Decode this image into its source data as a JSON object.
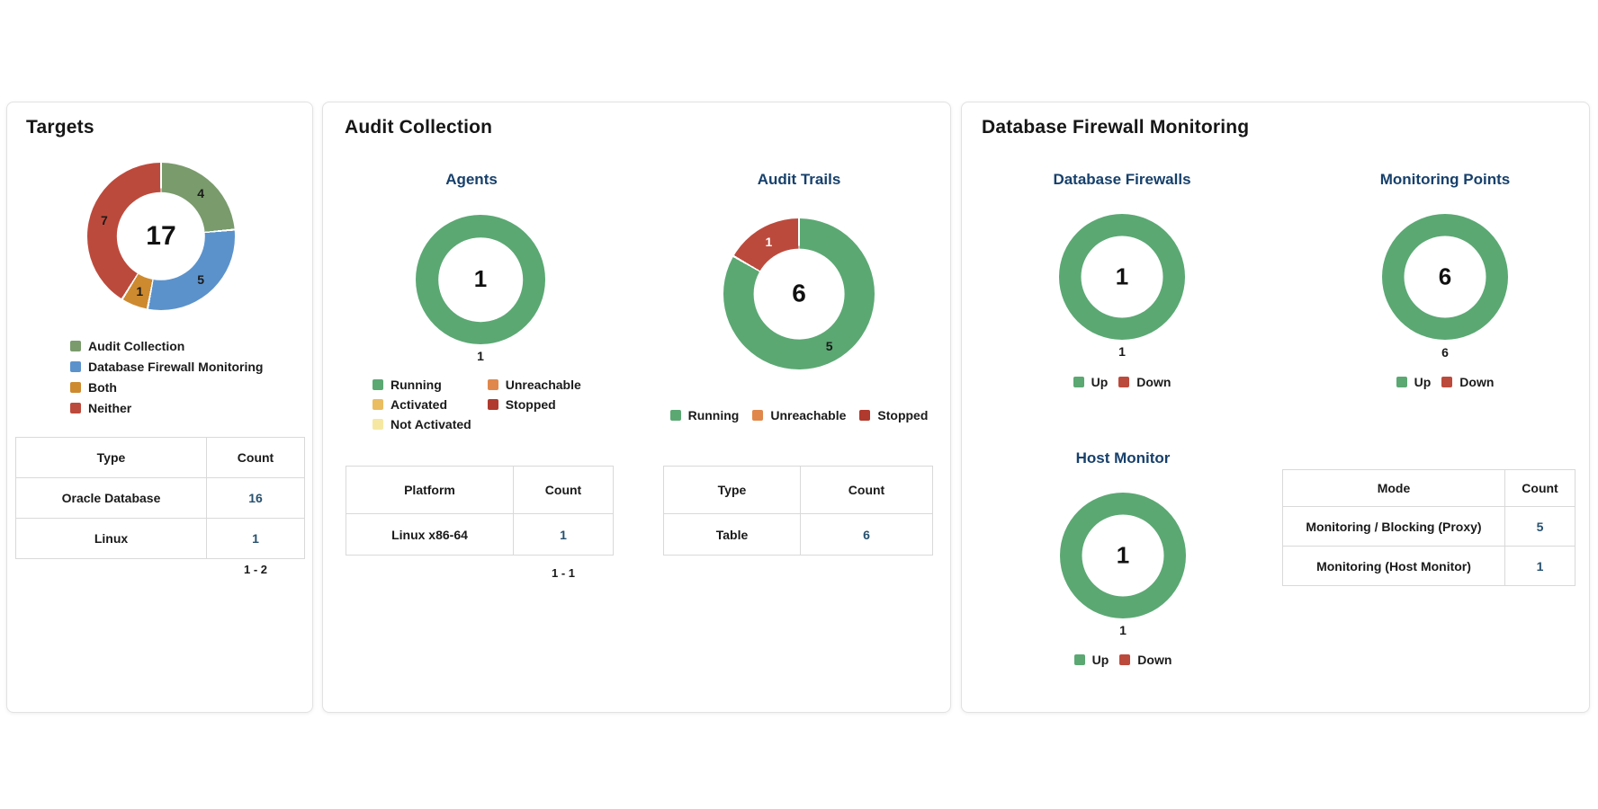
{
  "targets": {
    "title": "Targets",
    "legend": [
      {
        "label": "Audit Collection",
        "color": "#7A9B6C"
      },
      {
        "label": "Database Firewall Monitoring",
        "color": "#5B92CB"
      },
      {
        "label": "Both",
        "color": "#CE8A2F"
      },
      {
        "label": "Neither",
        "color": "#BC4A3C"
      }
    ],
    "table": {
      "headers": [
        "Type",
        "Count"
      ],
      "rows": [
        [
          "Oracle Database",
          "16"
        ],
        [
          "Linux",
          "1"
        ]
      ],
      "pagination": "1 - 2"
    }
  },
  "audit_collection": {
    "title": "Audit Collection",
    "agents": {
      "title": "Agents",
      "legend": [
        {
          "label": "Running",
          "color": "#5BA873"
        },
        {
          "label": "Activated",
          "color": "#EABD60"
        },
        {
          "label": "Not Activated",
          "color": "#F6E8A2"
        },
        {
          "label": "Unreachable",
          "color": "#E0884C"
        },
        {
          "label": "Stopped",
          "color": "#B03A2D"
        }
      ],
      "table": {
        "headers": [
          "Platform",
          "Count"
        ],
        "rows": [
          [
            "Linux x86-64",
            "1"
          ]
        ],
        "pagination": "1 - 1"
      }
    },
    "audit_trails": {
      "title": "Audit Trails",
      "legend": [
        {
          "label": "Running",
          "color": "#5BA873"
        },
        {
          "label": "Unreachable",
          "color": "#E0884C"
        },
        {
          "label": "Stopped",
          "color": "#B03A2D"
        }
      ],
      "table": {
        "headers": [
          "Type",
          "Count"
        ],
        "rows": [
          [
            "Table",
            "6"
          ]
        ]
      }
    }
  },
  "firewall": {
    "title": "Database Firewall Monitoring",
    "database_firewalls": {
      "title": "Database Firewalls",
      "legend": [
        {
          "label": "Up",
          "color": "#5BA873"
        },
        {
          "label": "Down",
          "color": "#BC4A3C"
        }
      ]
    },
    "monitoring_points": {
      "title": "Monitoring Points",
      "legend": [
        {
          "label": "Up",
          "color": "#5BA873"
        },
        {
          "label": "Down",
          "color": "#BC4A3C"
        }
      ]
    },
    "host_monitor": {
      "title": "Host Monitor",
      "legend": [
        {
          "label": "Up",
          "color": "#5BA873"
        },
        {
          "label": "Down",
          "color": "#BC4A3C"
        }
      ]
    },
    "table": {
      "headers": [
        "Mode",
        "Count"
      ],
      "rows": [
        [
          "Monitoring / Blocking (Proxy)",
          "5"
        ],
        [
          "Monitoring (Host Monitor)",
          "1"
        ]
      ]
    }
  },
  "chart_data": [
    {
      "id": "targets-donut",
      "type": "donut",
      "title": "Targets",
      "total": 17,
      "center_label": "17",
      "hole": 0.6,
      "slice_labels": true,
      "segments": [
        {
          "label": "Audit Collection",
          "value": 4,
          "color": "#7A9B6C"
        },
        {
          "label": "Database Firewall Monitoring",
          "value": 5,
          "color": "#5B92CB"
        },
        {
          "label": "Both",
          "value": 1,
          "color": "#CE8A2F"
        },
        {
          "label": "Neither",
          "value": 7,
          "color": "#BC4A3C"
        }
      ]
    },
    {
      "id": "agents-donut",
      "type": "donut",
      "title": "Agents",
      "total": 1,
      "center_label": "1",
      "below_label": "1",
      "hole": 0.65,
      "slice_labels": false,
      "segments": [
        {
          "label": "Running",
          "value": 1,
          "color": "#5BA873"
        }
      ]
    },
    {
      "id": "trails-donut",
      "type": "donut",
      "title": "Audit Trails",
      "total": 6,
      "center_label": "6",
      "hole": 0.6,
      "slice_labels": true,
      "segments": [
        {
          "label": "Running",
          "value": 5,
          "color": "#5BA873"
        },
        {
          "label": "Stopped",
          "value": 1,
          "color": "#BC4A3C",
          "label_color": "#FFFFFF"
        }
      ]
    },
    {
      "id": "dbfw-donut",
      "type": "donut",
      "title": "Database Firewalls",
      "total": 1,
      "center_label": "1",
      "below_label": "1",
      "hole": 0.65,
      "slice_labels": false,
      "segments": [
        {
          "label": "Up",
          "value": 1,
          "color": "#5BA873"
        }
      ]
    },
    {
      "id": "mp-donut",
      "type": "donut",
      "title": "Monitoring Points",
      "total": 6,
      "center_label": "6",
      "below_label": "6",
      "hole": 0.65,
      "slice_labels": false,
      "segments": [
        {
          "label": "Up",
          "value": 6,
          "color": "#5BA873"
        }
      ]
    },
    {
      "id": "hm-donut",
      "type": "donut",
      "title": "Host Monitor",
      "total": 1,
      "center_label": "1",
      "below_label": "1",
      "hole": 0.65,
      "slice_labels": false,
      "segments": [
        {
          "label": "Up",
          "value": 1,
          "color": "#5BA873"
        }
      ]
    }
  ]
}
